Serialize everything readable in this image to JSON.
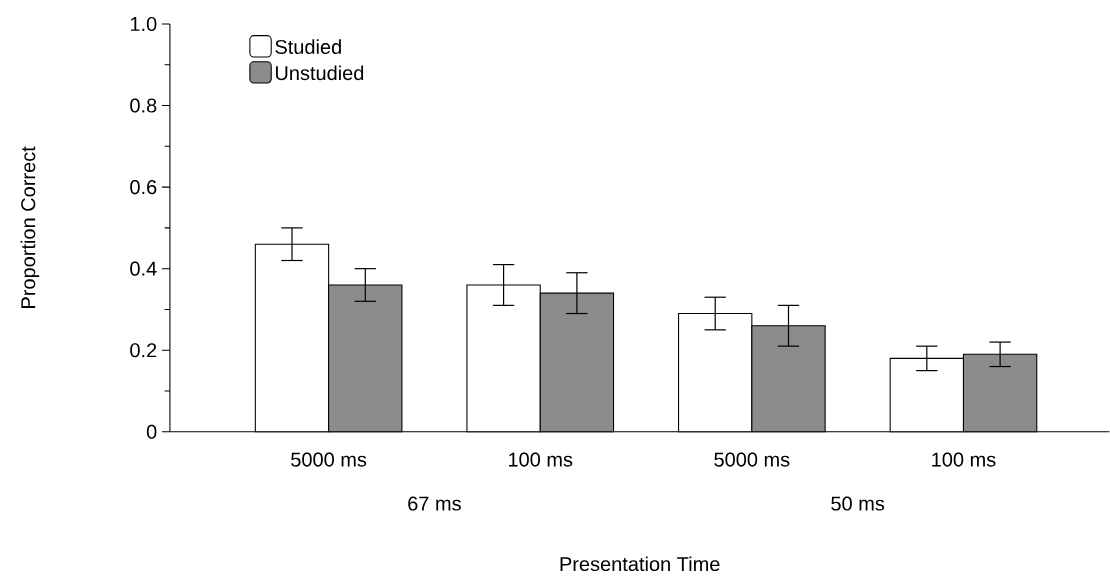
{
  "chart_data": {
    "type": "bar",
    "xlabel": "Presentation Time",
    "ylabel": "Proportion Correct",
    "categories": [
      "5000 ms",
      "100 ms",
      "5000 ms",
      "100 ms"
    ],
    "series": [
      {
        "name": "Studied",
        "color": "#ffffff",
        "values": [
          0.46,
          0.36,
          0.29,
          0.18
        ],
        "errors": [
          0.04,
          0.05,
          0.04,
          0.03
        ]
      },
      {
        "name": "Unstudied",
        "color": "#8c8c8c",
        "values": [
          0.36,
          0.34,
          0.26,
          0.19
        ],
        "errors": [
          0.04,
          0.05,
          0.05,
          0.03
        ]
      }
    ],
    "annotations": [
      "67 ms",
      "50 ms"
    ],
    "ylim": [
      0,
      1
    ],
    "yticks": [
      0,
      0.2,
      0.4,
      0.6,
      0.8,
      {
        "value": 1,
        "label": "1.0"
      }
    ],
    "legend": "top left"
  }
}
